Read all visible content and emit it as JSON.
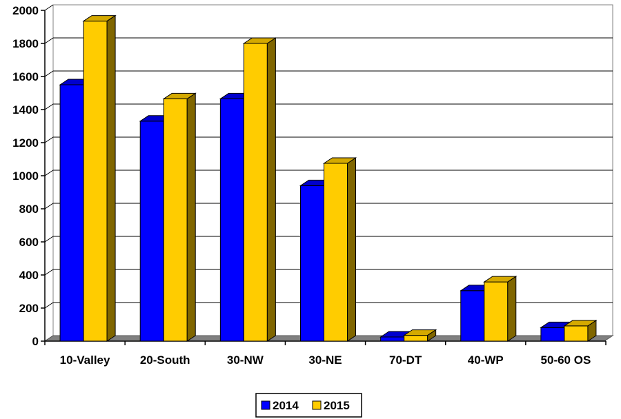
{
  "chart_data": {
    "type": "bar",
    "style": "3d-clustered-column",
    "title": "",
    "xlabel": "",
    "ylabel": "",
    "categories": [
      "10-Valley",
      "20-South",
      "30-NW",
      "30-NE",
      "70-DT",
      "40-WP",
      "50-60 OS"
    ],
    "series": [
      {
        "name": "2014",
        "values": [
          1550,
          1330,
          1465,
          940,
          25,
          305,
          82
        ],
        "color": "#0000ff",
        "side_color": "#00008b",
        "top_color": "#0000cd"
      },
      {
        "name": "2015",
        "values": [
          1935,
          1465,
          1800,
          1075,
          35,
          358,
          92
        ],
        "color": "#ffcc00",
        "side_color": "#806600",
        "top_color": "#d4a900"
      }
    ],
    "ylim": [
      0,
      2000
    ],
    "yticks": [
      0,
      200,
      400,
      600,
      800,
      1000,
      1200,
      1400,
      1600,
      1800,
      2000
    ],
    "grid": true,
    "legend_position": "bottom-center"
  }
}
